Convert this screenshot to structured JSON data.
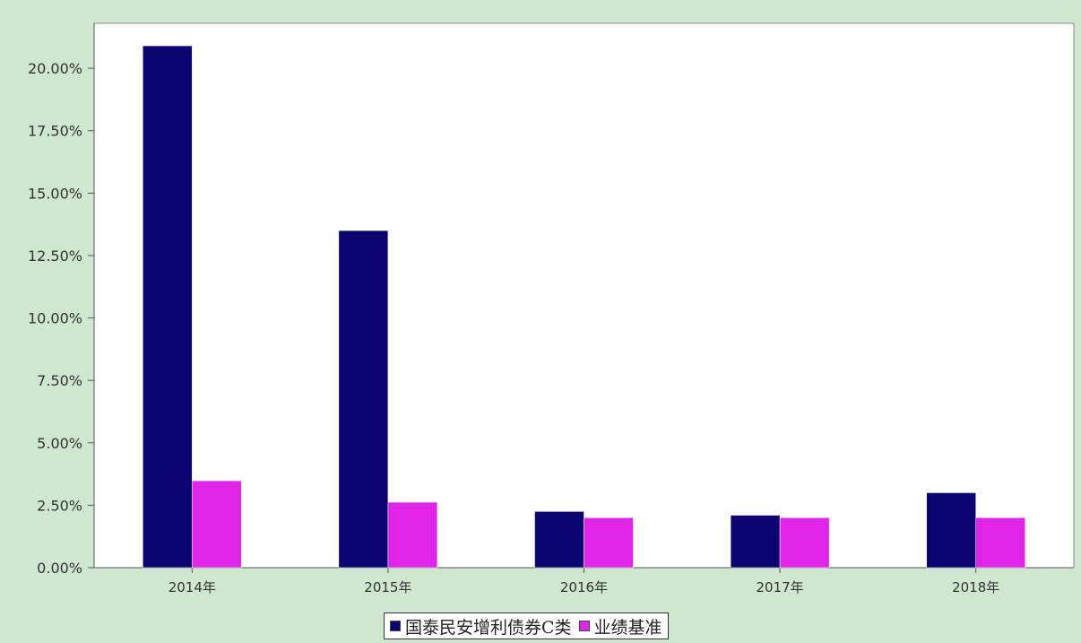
{
  "chart_data": {
    "type": "bar",
    "categories": [
      "2014年",
      "2015年",
      "2016年",
      "2017年",
      "2018年"
    ],
    "series": [
      {
        "name": "国泰民安增利债券C类",
        "color": "#0a0570",
        "values": [
          20.9,
          13.5,
          2.25,
          2.1,
          3.0
        ]
      },
      {
        "name": "业绩基准",
        "color": "#e024e8",
        "values": [
          3.48,
          2.62,
          2.0,
          2.0,
          2.0
        ]
      }
    ],
    "yticks": [
      "0.00%",
      "2.50%",
      "5.00%",
      "7.50%",
      "10.00%",
      "12.50%",
      "15.00%",
      "17.50%",
      "20.00%"
    ],
    "ylim": [
      0,
      21.8
    ],
    "grid": false,
    "legend": "bottom-center"
  }
}
